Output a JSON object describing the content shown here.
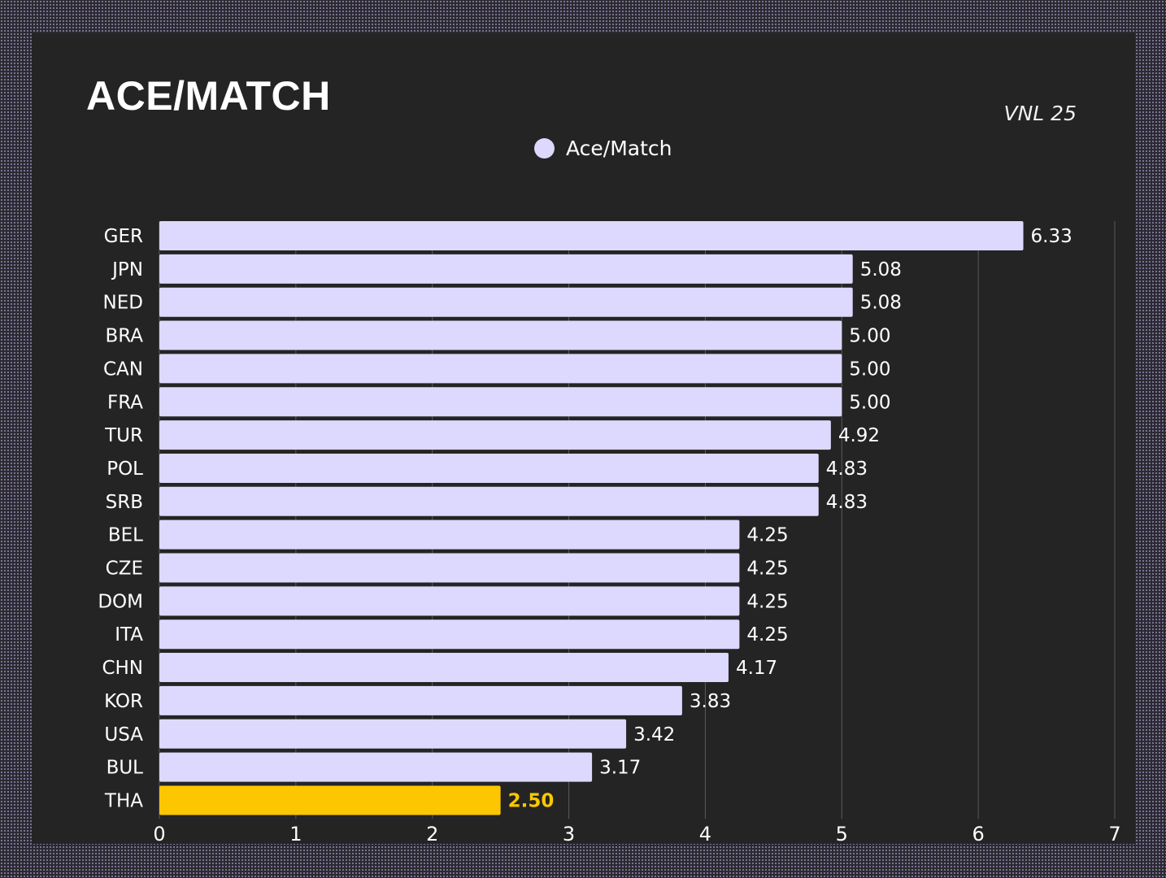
{
  "header": {
    "title": "ACE/MATCH",
    "subtitle": "VNL 25"
  },
  "colors": {
    "bar": "#ddd8fd",
    "highlight": "#fcc700",
    "background": "#242424",
    "grid": "#5a5a5a",
    "text": "#ffffff"
  },
  "chart_data": {
    "type": "bar",
    "orientation": "horizontal",
    "title": "ACE/MATCH",
    "subtitle": "VNL 25",
    "legend_position": "top-center",
    "grid": true,
    "xlim": [
      0,
      7
    ],
    "x_ticks": [
      "0",
      "1",
      "2",
      "3",
      "4",
      "5",
      "6",
      "7"
    ],
    "categories": [
      "GER",
      "JPN",
      "NED",
      "BRA",
      "CAN",
      "FRA",
      "TUR",
      "POL",
      "SRB",
      "BEL",
      "CZE",
      "DOM",
      "ITA",
      "CHN",
      "KOR",
      "USA",
      "BUL",
      "THA"
    ],
    "series": [
      {
        "name": "Ace/Match",
        "values": [
          6.33,
          5.08,
          5.08,
          5.0,
          5.0,
          5.0,
          4.92,
          4.83,
          4.83,
          4.25,
          4.25,
          4.25,
          4.25,
          4.17,
          3.83,
          3.42,
          3.17,
          2.5
        ],
        "labels": [
          "6.33",
          "5.08",
          "5.08",
          "5.00",
          "5.00",
          "5.00",
          "4.92",
          "4.83",
          "4.83",
          "4.25",
          "4.25",
          "4.25",
          "4.25",
          "4.17",
          "3.83",
          "3.42",
          "3.17",
          "2.50"
        ]
      }
    ],
    "highlight_category": "THA"
  }
}
